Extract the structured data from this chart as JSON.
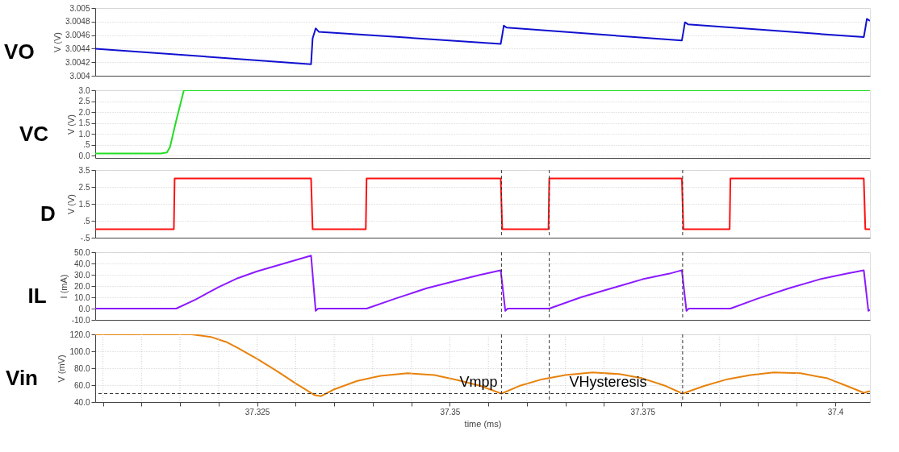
{
  "chart_data": [
    {
      "type": "line",
      "title": "VO",
      "ylabel": "V (V)",
      "color": "#1010d0",
      "grid": true,
      "tick_labels": "y",
      "xlim": [
        37.304,
        37.4045
      ],
      "ylim": [
        3.004,
        3.005
      ],
      "yticks": [
        3.004,
        3.0042,
        3.0044,
        3.0046,
        3.0048,
        3.005
      ],
      "x": [
        37.304,
        37.332,
        37.3322,
        37.3326,
        37.333,
        37.3566,
        37.3568,
        37.357,
        37.3574,
        37.3801,
        37.3803,
        37.3805,
        37.3809,
        37.4037,
        37.4039,
        37.4041,
        37.4045
      ],
      "values": [
        3.0044,
        3.00417,
        3.00455,
        3.0047,
        3.00465,
        3.00447,
        3.0046,
        3.00474,
        3.00471,
        3.00452,
        3.00465,
        3.00479,
        3.00476,
        3.00457,
        3.0047,
        3.00484,
        3.00481
      ]
    },
    {
      "type": "line",
      "title": "VC",
      "ylabel": "V (V)",
      "color": "#22dd22",
      "grid": true,
      "tick_labels": "y",
      "xlim": [
        37.304,
        37.4045
      ],
      "ylim": [
        -0.1,
        3.0
      ],
      "yticks": [
        {
          "value": 0,
          "label": "0.0"
        },
        {
          "value": 0.5,
          "label": ".5"
        },
        {
          "value": 1,
          "label": "1.0"
        },
        {
          "value": 1.5,
          "label": "1.5"
        },
        {
          "value": 2,
          "label": "2.0"
        },
        {
          "value": 2.5,
          "label": "2.5"
        },
        {
          "value": 3,
          "label": "3.0"
        }
      ],
      "x": [
        37.304,
        37.3125,
        37.3133,
        37.3137,
        37.3143,
        37.3145,
        37.315,
        37.3155,
        37.4045
      ],
      "values": [
        0.1,
        0.1,
        0.15,
        0.4,
        1.3,
        1.6,
        2.3,
        3.0,
        3.0
      ]
    },
    {
      "type": "line",
      "title": "D",
      "ylabel": "V (V)",
      "color": "#ff1010",
      "grid": true,
      "tick_labels": "y",
      "xlim": [
        37.304,
        37.4045
      ],
      "ylim": [
        -0.5,
        3.5
      ],
      "yticks": [
        {
          "value": -0.5,
          "label": "-.5"
        },
        {
          "value": 0.5,
          "label": ".5"
        },
        {
          "value": 1.5,
          "label": "1.5"
        },
        {
          "value": 2.5,
          "label": "2.5"
        },
        {
          "value": 3.5,
          "label": "3.5"
        }
      ],
      "x": [
        37.304,
        37.3142,
        37.3143,
        37.332,
        37.3322,
        37.3391,
        37.3392,
        37.3566,
        37.3568,
        37.3628,
        37.3629,
        37.3801,
        37.3803,
        37.3863,
        37.3864,
        37.4037,
        37.4039,
        37.4045
      ],
      "values": [
        0,
        0,
        3,
        3,
        0,
        0,
        3,
        3,
        0,
        0,
        3,
        3,
        0,
        0,
        3,
        3,
        0,
        0
      ],
      "ref_lines": [
        {
          "axis": "x",
          "value": 37.3567,
          "line_style": "dashed"
        },
        {
          "axis": "x",
          "value": 37.3629,
          "line_style": "dashed"
        },
        {
          "axis": "x",
          "value": 37.3802,
          "line_style": "dashed"
        }
      ]
    },
    {
      "type": "line",
      "title": "IL",
      "ylabel": "I (mA)",
      "color": "#8b1aff",
      "grid": true,
      "tick_labels": "y",
      "xlim": [
        37.304,
        37.4045
      ],
      "ylim": [
        -10,
        50
      ],
      "yticks": [
        {
          "value": -10,
          "label": "-10.0"
        },
        {
          "value": 0,
          "label": "0.0"
        },
        {
          "value": 10,
          "label": "10.0"
        },
        {
          "value": 20,
          "label": "20.0"
        },
        {
          "value": 30,
          "label": "30.0"
        },
        {
          "value": 40,
          "label": "40.0"
        },
        {
          "value": 50,
          "label": "50.0"
        }
      ],
      "x": [
        37.304,
        37.3145,
        37.317,
        37.32,
        37.3225,
        37.325,
        37.3285,
        37.332,
        37.3326,
        37.3329,
        37.3392,
        37.343,
        37.347,
        37.351,
        37.354,
        37.3566,
        37.3572,
        37.3575,
        37.3629,
        37.367,
        37.371,
        37.375,
        37.3785,
        37.3801,
        37.3807,
        37.381,
        37.3864,
        37.39,
        37.394,
        37.398,
        37.4015,
        37.4037,
        37.4043,
        37.4045
      ],
      "values": [
        0,
        0,
        8,
        19,
        27,
        33,
        40,
        47,
        -2,
        0,
        0,
        9,
        18,
        25,
        30,
        34,
        -2,
        0,
        0,
        10,
        18,
        26,
        31,
        34,
        -2,
        0,
        0,
        9,
        18,
        26,
        31,
        34,
        -2,
        -1
      ],
      "ref_lines": [
        {
          "axis": "x",
          "value": 37.3567,
          "line_style": "dashed"
        },
        {
          "axis": "x",
          "value": 37.3629,
          "line_style": "dashed"
        },
        {
          "axis": "x",
          "value": 37.3802,
          "line_style": "dashed"
        }
      ]
    },
    {
      "type": "line",
      "title": "Vin",
      "ylabel": "V (mV)",
      "xlabel": "time (ms)",
      "color": "#e8820c",
      "grid": true,
      "xlim": [
        37.304,
        37.4045
      ],
      "ylim": [
        40,
        120
      ],
      "xticks": [
        {
          "value": 37.305,
          "label": null
        },
        {
          "value": 37.31,
          "label": null
        },
        {
          "value": 37.315,
          "label": null
        },
        {
          "value": 37.32,
          "label": null
        },
        37.325,
        {
          "value": 37.33,
          "label": null
        },
        {
          "value": 37.335,
          "label": null
        },
        {
          "value": 37.34,
          "label": null
        },
        {
          "value": 37.345,
          "label": null
        },
        37.35,
        {
          "value": 37.355,
          "label": null
        },
        {
          "value": 37.36,
          "label": null
        },
        {
          "value": 37.365,
          "label": null
        },
        {
          "value": 37.37,
          "label": null
        },
        37.375,
        {
          "value": 37.38,
          "label": null
        },
        {
          "value": 37.385,
          "label": null
        },
        {
          "value": 37.39,
          "label": null
        },
        {
          "value": 37.395,
          "label": null
        },
        37.4
      ],
      "yticks": [
        {
          "value": 40,
          "label": "40.0"
        },
        {
          "value": 60,
          "label": "60.0"
        },
        {
          "value": 80,
          "label": "80.0"
        },
        {
          "value": 100,
          "label": "100.0"
        },
        {
          "value": 120,
          "label": "120.0"
        }
      ],
      "x": [
        37.304,
        37.3165,
        37.319,
        37.321,
        37.3225,
        37.325,
        37.3275,
        37.33,
        37.3325,
        37.3333,
        37.335,
        37.338,
        37.341,
        37.3445,
        37.348,
        37.351,
        37.354,
        37.3567,
        37.359,
        37.362,
        37.365,
        37.3685,
        37.372,
        37.375,
        37.378,
        37.3802,
        37.383,
        37.386,
        37.389,
        37.392,
        37.3955,
        37.399,
        37.4015,
        37.4037,
        37.4045
      ],
      "values": [
        120,
        120,
        117,
        111,
        104,
        91,
        77,
        62,
        48,
        47,
        55,
        65,
        71,
        74,
        72,
        66,
        59,
        50,
        59,
        67,
        72,
        75,
        73,
        68,
        59,
        50,
        59,
        67,
        72,
        75,
        74,
        68,
        59,
        51,
        53
      ],
      "ref_lines": [
        {
          "axis": "x",
          "value": 37.3567,
          "line_style": "dashed"
        },
        {
          "axis": "x",
          "value": 37.3629,
          "line_style": "dashed"
        },
        {
          "axis": "x",
          "value": 37.3802,
          "line_style": "dashed"
        },
        {
          "axis": "y",
          "value": 50,
          "line_style": "dashed"
        }
      ],
      "annotations": [
        {
          "text": "Vmpp",
          "x": 37.3562,
          "y": 50
        },
        {
          "text": "VHysteresis",
          "x": 37.3655,
          "y": 50
        }
      ]
    }
  ]
}
